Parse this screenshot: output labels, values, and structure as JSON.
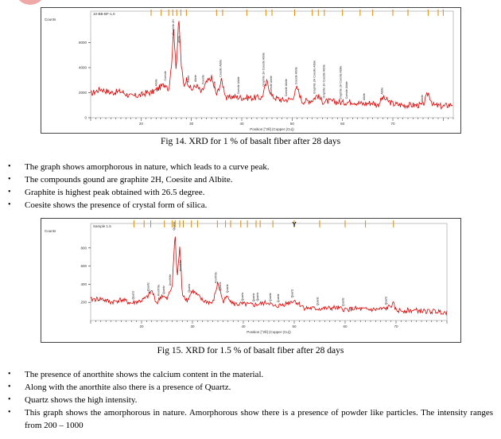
{
  "fig1": {
    "caption": "Fig 14. XRD for 1 % of basalt fiber after 28 days",
    "axis_title": "Counts",
    "sample_label": "10-BB-BF-1.0",
    "xlabel": "Position [°2θ] (Copper (Cu))",
    "y_ticks": [
      "6000",
      "4000",
      "2000",
      "0"
    ],
    "x_ticks": [
      "20",
      "30",
      "40",
      "50",
      "60",
      "70"
    ],
    "peak_labels": [
      {
        "x": 23.2,
        "text": "Albite"
      },
      {
        "x": 25.0,
        "text": "Coesite"
      },
      {
        "x": 26.6,
        "text": "Graphite 2H"
      },
      {
        "x": 27.8,
        "text": "Albite"
      },
      {
        "x": 29.6,
        "text": "Albite"
      },
      {
        "x": 31.0,
        "text": "Albite"
      },
      {
        "x": 32.5,
        "text": "Coesite"
      },
      {
        "x": 34.8,
        "text": "Albite"
      },
      {
        "x": 36.0,
        "text": "Coesite Albite"
      },
      {
        "x": 39.5,
        "text": "Coesite Albite"
      },
      {
        "x": 44.5,
        "text": "Graphite 2H Coesite Albite"
      },
      {
        "x": 46.0,
        "text": "Coesite Albite"
      },
      {
        "x": 49.0,
        "text": "Coesite Albite"
      },
      {
        "x": 51.0,
        "text": "Coesite Albite"
      },
      {
        "x": 54.6,
        "text": "Graphite 2H Coesite Albite"
      },
      {
        "x": 56.5,
        "text": "Graphite 2H Coesite Albite"
      },
      {
        "x": 59.8,
        "text": "Graphite 2H Coesite Albite"
      },
      {
        "x": 61.0,
        "text": "Coesite Albite"
      },
      {
        "x": 64.5,
        "text": "Albite"
      },
      {
        "x": 68.0,
        "text": "Albite"
      },
      {
        "x": 76.0,
        "text": "Albite"
      }
    ],
    "ref_ticks": [
      22,
      24,
      25.5,
      26.3,
      27.1,
      27.9,
      29.0,
      35.0,
      36.2,
      41.0,
      44.8,
      46.0,
      50.5,
      54.0,
      55.2,
      56.4,
      60.0,
      63.5,
      66.0,
      70.0,
      73.0,
      77.0,
      79.0,
      80.0
    ]
  },
  "chart_data": [
    {
      "type": "line",
      "title": "",
      "xlabel": "Position [°2θ] (Copper (Cu))",
      "ylabel": "Counts",
      "xlim": [
        10,
        82
      ],
      "ylim": [
        0,
        8000
      ],
      "grid": false,
      "series": [
        {
          "x": [
            10,
            12,
            14,
            16,
            18,
            20,
            21,
            22,
            23,
            24,
            25,
            25.5,
            26,
            26.5,
            27,
            27.5,
            28,
            28.5,
            29,
            30,
            31,
            32,
            33,
            34,
            35,
            36,
            37,
            38,
            40,
            42,
            44,
            45,
            46,
            48,
            50,
            51,
            52,
            54,
            55,
            56,
            58,
            60,
            62,
            64,
            66,
            67,
            68,
            70,
            72,
            74,
            76,
            77,
            78,
            80,
            82
          ],
          "values": [
            1900,
            2300,
            2000,
            2100,
            1700,
            1800,
            2000,
            2000,
            2200,
            2500,
            2700,
            2200,
            4000,
            7000,
            3800,
            8000,
            4200,
            2500,
            3100,
            2200,
            2600,
            2000,
            2800,
            3200,
            1800,
            3000,
            1500,
            1700,
            1600,
            1600,
            1600,
            2900,
            1700,
            1400,
            1500,
            2400,
            1300,
            1400,
            1800,
            1300,
            1300,
            1200,
            1300,
            1100,
            1200,
            1000,
            1600,
            1100,
            1000,
            1000,
            1000,
            2000,
            1000,
            900,
            1100
          ]
        }
      ]
    },
    {
      "type": "line",
      "title": "",
      "xlabel": "Position [°2θ] (Copper (Cu))",
      "ylabel": "Counts",
      "xlim": [
        10,
        80
      ],
      "ylim": [
        0,
        1000
      ],
      "grid": false,
      "series": [
        {
          "x": [
            10,
            12,
            14,
            16,
            18,
            20,
            21,
            22,
            23,
            24,
            25,
            26,
            26.6,
            27,
            27.5,
            28,
            29,
            30,
            32,
            34,
            35,
            36,
            37,
            38,
            40,
            42,
            44,
            45,
            46,
            48,
            50,
            52,
            54,
            56,
            58,
            60,
            62,
            64,
            66,
            68,
            69.5,
            70,
            72,
            74,
            76,
            78,
            80
          ],
          "values": [
            230,
            240,
            200,
            230,
            190,
            220,
            250,
            330,
            190,
            280,
            230,
            380,
            960,
            450,
            820,
            300,
            220,
            330,
            220,
            190,
            420,
            210,
            270,
            180,
            180,
            170,
            190,
            200,
            150,
            180,
            220,
            140,
            130,
            130,
            140,
            120,
            130,
            120,
            120,
            130,
            180,
            110,
            110,
            110,
            100,
            100,
            90
          ]
        }
      ]
    }
  ],
  "bullets1": [
    "The graph shows amorphorous in nature, which leads to a curve peak.",
    "The compounds gound are graphite 2H, Coesite and Albite.",
    "Graphite is highest peak obtained with 26.5 degree.",
    "Coesite shows the presence of crystal form of silica."
  ],
  "fig2": {
    "caption": "Fig 15. XRD for 1.5 % of basalt fiber after 28 days",
    "axis_title": "Counts",
    "sample_label": "Sample 1.5",
    "xlabel": "Position [°2θ] (Copper (Cu))",
    "y_ticks": [
      "800",
      "600",
      "400",
      "200"
    ],
    "x_ticks": [
      "20",
      "30",
      "40",
      "50",
      "60",
      "70"
    ],
    "peak_labels": [
      {
        "x": 18.5,
        "text": "Quartz"
      },
      {
        "x": 21.5,
        "text": "Quartz"
      },
      {
        "x": 23.5,
        "text": "Anorthite"
      },
      {
        "x": 24.5,
        "text": "Quartz"
      },
      {
        "x": 25.8,
        "text": "Anorthite"
      },
      {
        "x": 26.6,
        "text": "Quartz"
      },
      {
        "x": 27.8,
        "text": "Anorthite"
      },
      {
        "x": 29.5,
        "text": "Quartz"
      },
      {
        "x": 34.8,
        "text": "Anorthite"
      },
      {
        "x": 35.6,
        "text": "Quartz"
      },
      {
        "x": 37.0,
        "text": "Quartz"
      },
      {
        "x": 40.0,
        "text": "Quartz"
      },
      {
        "x": 42.2,
        "text": "Quartz"
      },
      {
        "x": 43.0,
        "text": "Quartz"
      },
      {
        "x": 45.5,
        "text": "Quartz"
      },
      {
        "x": 47.0,
        "text": "Quartz"
      },
      {
        "x": 49.8,
        "text": "Quartz"
      },
      {
        "x": 54.8,
        "text": "Quartz"
      },
      {
        "x": 59.8,
        "text": "Quartz"
      },
      {
        "x": 68.2,
        "text": "Quartz"
      }
    ],
    "ref_ticks": [
      18.5,
      20.5,
      21.8,
      24.5,
      26.0,
      26.6,
      27.5,
      28.2,
      29.8,
      31.0,
      34.9,
      36.5,
      37.5,
      39.5,
      40.8,
      42.5,
      43.3,
      45.8,
      50.0,
      55.0,
      60.0,
      64.0,
      69.5
    ],
    "marker": {
      "x": 50.0,
      "text": "Y"
    }
  },
  "bullets2": [
    "The presence of anorthite shows the calcium content in the material.",
    "Along with the anorthite also there is a presence of Quartz.",
    "Quartz shows the high intensity.",
    "This graph shows the amorphorous in nature. Amorphorous show there is a presence of powder like particles. The intensity ranges from 200 – 1000"
  ],
  "colors": {
    "pattern": "#e00000",
    "ref_tick": "#e08a00",
    "axis": "#222222",
    "logo": "#e06060"
  }
}
